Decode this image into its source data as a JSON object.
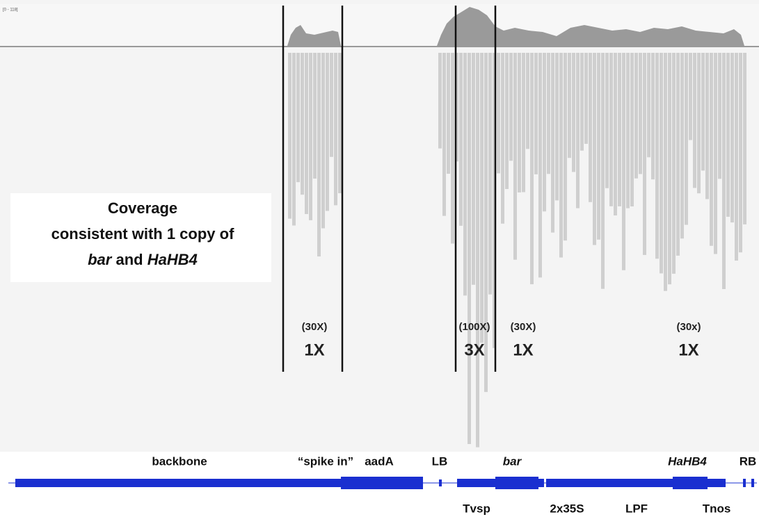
{
  "coverage_track": {
    "range_label": "[0 - 118]"
  },
  "annotation": {
    "lines": [
      "Coverage",
      "consistent with 1 copy of"
    ],
    "gene1": "bar",
    "conjunction": "and",
    "gene2": "HaHB4"
  },
  "regions": [
    {
      "coverage": "(30X)",
      "copies": "1X"
    },
    {
      "coverage": "(100X)",
      "copies": "3X"
    },
    {
      "coverage": "(30X)",
      "copies": "1X"
    },
    {
      "coverage": "(30x)",
      "copies": "1X"
    }
  ],
  "features_above": [
    "backbone",
    "“spike in”",
    "aadA",
    "LB",
    "bar",
    "HaHB4",
    "RB"
  ],
  "features_below": [
    "Tvsp",
    "2x35S",
    "LPF",
    "Tnos"
  ]
}
